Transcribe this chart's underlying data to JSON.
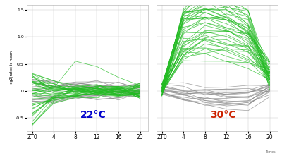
{
  "timepoints": [
    0,
    4,
    8,
    12,
    16,
    20
  ],
  "xtick_labels": [
    "ZT0",
    "4",
    "8",
    "12",
    "16",
    "20"
  ],
  "ylabel": "log2(ratio) to mean",
  "ylim": [
    -0.75,
    1.6
  ],
  "yticks": [
    -0.5,
    0.0,
    0.5,
    1.0,
    1.5
  ],
  "background_color": "#ffffff",
  "label_22": "22°C",
  "label_30": "30°C",
  "label_22_color": "#0000cc",
  "label_30_color": "#cc2200",
  "green_color": "#22bb22",
  "gray_color": "#888888",
  "seed_22_green": 7,
  "seed_22_gray": 13,
  "seed_30_green": 42,
  "seed_30_gray": 99
}
